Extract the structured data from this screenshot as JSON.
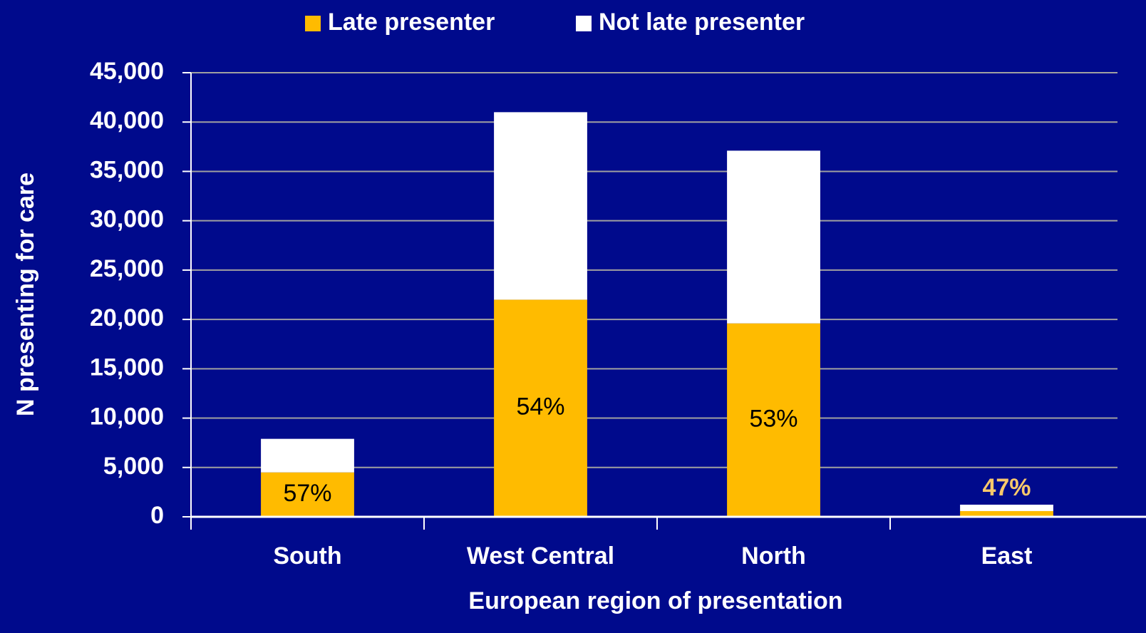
{
  "chart_data": {
    "type": "stacked_bar",
    "x_label": "European region of presentation",
    "y_label": "N presenting for care",
    "categories": [
      "South",
      "West Central",
      "North",
      "East"
    ],
    "series": [
      {
        "name": "Late presenter",
        "color": "#ffbb00",
        "values": [
          4500,
          22000,
          19600,
          580
        ]
      },
      {
        "name": "Not late presenter",
        "color": "#ffffff",
        "values": [
          3400,
          19000,
          17500,
          650
        ]
      }
    ],
    "percent_labels": [
      "57%",
      "54%",
      "53%",
      "47%"
    ],
    "ylim": [
      0,
      45000
    ],
    "yticks": [
      0,
      {
        "value": 5000,
        "label": "5,000"
      },
      {
        "value": 10000,
        "label": "10,000"
      },
      {
        "value": 15000,
        "label": "15,000"
      },
      {
        "value": 20000,
        "label": "20,000"
      },
      {
        "value": 25000,
        "label": "25,000"
      },
      {
        "value": 30000,
        "label": "30,000"
      },
      {
        "value": 35000,
        "label": "35,000"
      },
      {
        "value": 40000,
        "label": "40,000"
      },
      {
        "value": 45000,
        "label": "45,000"
      }
    ],
    "grid": true,
    "legend": "top"
  }
}
